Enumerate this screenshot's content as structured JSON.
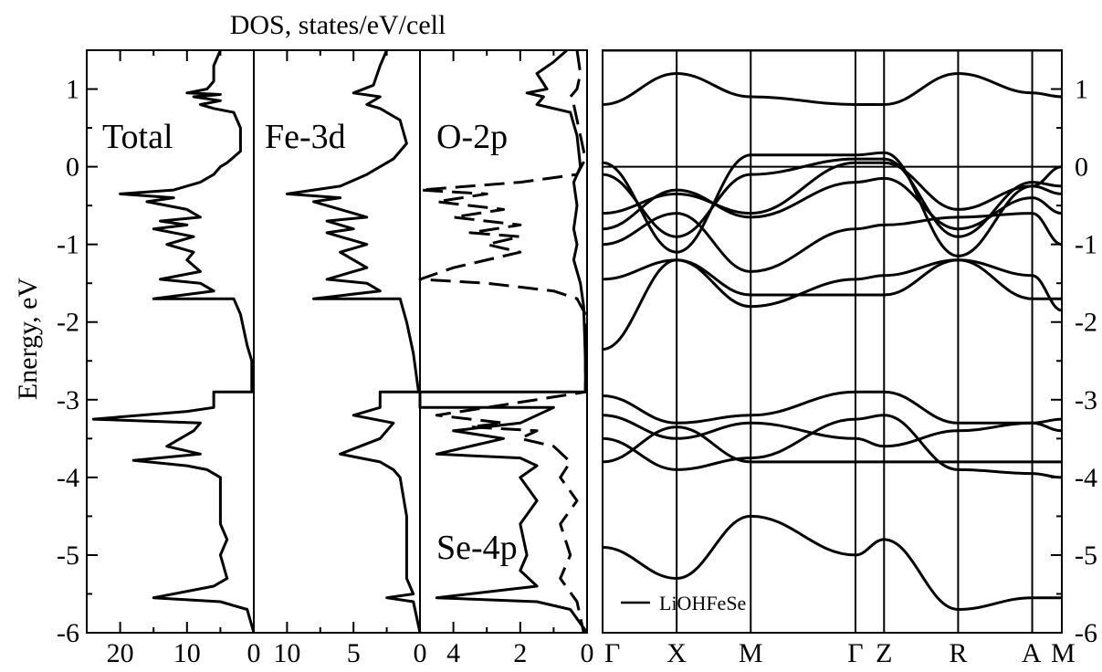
{
  "chart_data": {
    "type": "line",
    "title": "DOS, states/eV/cell",
    "ylabel": "Energy, eV",
    "ylim": [
      -6,
      1.5
    ],
    "y_ticks": [
      1,
      0,
      -1,
      -2,
      -3,
      -4,
      -5,
      -6
    ],
    "y_tick_labels": [
      "1",
      "0",
      "-1",
      "-2",
      "-3",
      "-4",
      "-5",
      "-6"
    ],
    "panels": [
      {
        "label": "Total",
        "xlim": [
          25,
          0
        ],
        "x_ticks": [
          20,
          10,
          0
        ],
        "x_tick_labels": [
          "20",
          "10",
          "0"
        ],
        "series": [
          {
            "style": "solid",
            "points": [
              [
                5,
                1.5
              ],
              [
                6,
                1.3
              ],
              [
                6,
                1.1
              ],
              [
                7,
                1.0
              ],
              [
                10,
                0.95
              ],
              [
                5,
                0.93
              ],
              [
                9,
                0.9
              ],
              [
                5,
                0.85
              ],
              [
                8,
                0.8
              ],
              [
                6,
                0.75
              ],
              [
                3,
                0.7
              ],
              [
                2,
                0.5
              ],
              [
                2,
                0.2
              ],
              [
                4,
                0.05
              ],
              [
                5,
                0
              ],
              [
                6,
                -0.1
              ],
              [
                8,
                -0.2
              ],
              [
                12,
                -0.3
              ],
              [
                20,
                -0.35
              ],
              [
                12,
                -0.4
              ],
              [
                16,
                -0.45
              ],
              [
                10,
                -0.55
              ],
              [
                8,
                -0.65
              ],
              [
                14,
                -0.7
              ],
              [
                10,
                -0.75
              ],
              [
                15,
                -0.8
              ],
              [
                9,
                -0.9
              ],
              [
                13,
                -1.0
              ],
              [
                9,
                -1.1
              ],
              [
                10,
                -1.2
              ],
              [
                8,
                -1.35
              ],
              [
                14,
                -1.45
              ],
              [
                8,
                -1.5
              ],
              [
                6,
                -1.6
              ],
              [
                15,
                -1.7
              ],
              [
                3,
                -1.7
              ],
              [
                2,
                -1.9
              ],
              [
                1,
                -2.3
              ],
              [
                0.3,
                -2.5
              ],
              [
                0.3,
                -2.9
              ],
              [
                6,
                -2.9
              ],
              [
                6,
                -3.1
              ],
              [
                10,
                -3.15
              ],
              [
                24,
                -3.25
              ],
              [
                8,
                -3.3
              ],
              [
                9,
                -3.4
              ],
              [
                13,
                -3.6
              ],
              [
                8,
                -3.7
              ],
              [
                18,
                -3.78
              ],
              [
                10,
                -3.85
              ],
              [
                7,
                -3.9
              ],
              [
                5,
                -4.0
              ],
              [
                5,
                -4.6
              ],
              [
                4,
                -4.8
              ],
              [
                5,
                -5.0
              ],
              [
                4,
                -5.3
              ],
              [
                6,
                -5.4
              ],
              [
                15,
                -5.55
              ],
              [
                5,
                -5.6
              ],
              [
                1,
                -5.7
              ],
              [
                0,
                -6.0
              ]
            ]
          }
        ]
      },
      {
        "label": "Fe-3d",
        "xlim": [
          12.5,
          0
        ],
        "x_ticks": [
          10,
          5,
          0
        ],
        "x_tick_labels": [
          "10",
          "5",
          "0"
        ],
        "series": [
          {
            "style": "solid",
            "points": [
              [
                2.5,
                1.5
              ],
              [
                3,
                1.3
              ],
              [
                3.5,
                1.05
              ],
              [
                5,
                0.95
              ],
              [
                3,
                0.9
              ],
              [
                4,
                0.8
              ],
              [
                3,
                0.75
              ],
              [
                1.5,
                0.6
              ],
              [
                1,
                0.3
              ],
              [
                2,
                0.1
              ],
              [
                3,
                0
              ],
              [
                4,
                -0.1
              ],
              [
                6,
                -0.25
              ],
              [
                10,
                -0.35
              ],
              [
                6,
                -0.4
              ],
              [
                8,
                -0.45
              ],
              [
                5,
                -0.6
              ],
              [
                4,
                -0.65
              ],
              [
                7,
                -0.7
              ],
              [
                5,
                -0.8
              ],
              [
                7,
                -0.85
              ],
              [
                4,
                -1.0
              ],
              [
                6,
                -1.1
              ],
              [
                4,
                -1.3
              ],
              [
                7,
                -1.45
              ],
              [
                4,
                -1.5
              ],
              [
                3,
                -1.6
              ],
              [
                8,
                -1.7
              ],
              [
                1.5,
                -1.7
              ],
              [
                1,
                -2.0
              ],
              [
                0.5,
                -2.4
              ],
              [
                0.1,
                -2.9
              ],
              [
                3,
                -2.9
              ],
              [
                3,
                -3.1
              ],
              [
                5,
                -3.2
              ],
              [
                2,
                -3.3
              ],
              [
                3,
                -3.5
              ],
              [
                6,
                -3.7
              ],
              [
                3,
                -3.8
              ],
              [
                2,
                -3.9
              ],
              [
                1.5,
                -4.0
              ],
              [
                1,
                -4.5
              ],
              [
                1,
                -5.3
              ],
              [
                0.5,
                -5.5
              ],
              [
                2.5,
                -5.55
              ],
              [
                0.5,
                -5.6
              ],
              [
                0,
                -6.0
              ]
            ]
          }
        ]
      },
      {
        "label": "O-2p",
        "xlim": [
          5,
          0
        ],
        "x_ticks": [
          4,
          2,
          0
        ],
        "x_tick_labels": [
          "4",
          "2",
          "0"
        ],
        "series": [
          {
            "style": "solid",
            "points": [
              [
                0.6,
                1.5
              ],
              [
                1,
                1.35
              ],
              [
                1.5,
                1.2
              ],
              [
                1.2,
                1.0
              ],
              [
                1.8,
                0.95
              ],
              [
                1.3,
                0.9
              ],
              [
                1.5,
                0.8
              ],
              [
                0.5,
                0.7
              ],
              [
                0.3,
                0.4
              ],
              [
                0.2,
                0
              ],
              [
                0.4,
                -0.2
              ],
              [
                0.3,
                -0.5
              ],
              [
                0.4,
                -0.8
              ],
              [
                0.3,
                -1.0
              ],
              [
                0.4,
                -1.2
              ],
              [
                0.2,
                -1.5
              ],
              [
                0.1,
                -1.8
              ],
              [
                0.05,
                -2.5
              ],
              [
                0.05,
                -2.9
              ],
              [
                5,
                -2.9
              ],
              [
                5,
                -3.1
              ],
              [
                1,
                -3.1
              ],
              [
                2,
                -3.3
              ],
              [
                4,
                -3.4
              ],
              [
                2.5,
                -3.5
              ],
              [
                4.5,
                -3.7
              ],
              [
                2,
                -3.75
              ],
              [
                1.5,
                -3.85
              ],
              [
                2,
                -4.0
              ],
              [
                1.5,
                -4.3
              ],
              [
                2,
                -4.6
              ],
              [
                1.8,
                -5.0
              ],
              [
                2,
                -5.2
              ],
              [
                1.5,
                -5.4
              ],
              [
                4.5,
                -5.55
              ],
              [
                1.5,
                -5.6
              ],
              [
                0.5,
                -5.7
              ],
              [
                0,
                -6.0
              ]
            ]
          },
          {
            "style": "dashed",
            "points": [
              [
                0.3,
                1.5
              ],
              [
                0.2,
                1.2
              ],
              [
                0.3,
                1.0
              ],
              [
                0.5,
                0.9
              ],
              [
                0.4,
                0.8
              ],
              [
                0.2,
                0.4
              ],
              [
                0.05,
                0.1
              ],
              [
                0.3,
                -0.1
              ],
              [
                2,
                -0.2
              ],
              [
                5,
                -0.3
              ],
              [
                3,
                -0.35
              ],
              [
                4.5,
                -0.45
              ],
              [
                2.5,
                -0.55
              ],
              [
                4,
                -0.65
              ],
              [
                2,
                -0.75
              ],
              [
                3.5,
                -0.85
              ],
              [
                2,
                -0.9
              ],
              [
                3,
                -1.0
              ],
              [
                2,
                -1.1
              ],
              [
                4,
                -1.3
              ],
              [
                5,
                -1.45
              ],
              [
                3,
                -1.5
              ],
              [
                1,
                -1.6
              ],
              [
                0.3,
                -1.7
              ],
              [
                0.05,
                -1.9
              ],
              [
                0.05,
                -2.9
              ],
              [
                3,
                -3.1
              ],
              [
                4.5,
                -3.2
              ],
              [
                2.5,
                -3.3
              ],
              [
                3.5,
                -3.35
              ],
              [
                1.5,
                -3.4
              ],
              [
                2,
                -3.5
              ],
              [
                1,
                -3.6
              ],
              [
                0.5,
                -3.8
              ],
              [
                0.8,
                -4.0
              ],
              [
                0.3,
                -4.3
              ],
              [
                0.8,
                -4.6
              ],
              [
                0.5,
                -5.0
              ],
              [
                0.8,
                -5.3
              ],
              [
                0.3,
                -5.6
              ],
              [
                0.1,
                -6.0
              ]
            ]
          }
        ]
      }
    ],
    "inset_labels": [
      {
        "panel": 0,
        "text": "Total"
      },
      {
        "panel": 1,
        "text": "Fe-3d"
      },
      {
        "panel": 2,
        "text": "O-2p"
      },
      {
        "panel": 2,
        "text": "Se-4p"
      }
    ],
    "bands": {
      "ylim": [
        -6,
        1.5
      ],
      "k_labels": [
        "Γ",
        "X",
        "M",
        "Γ",
        "Z",
        "R",
        "A",
        "M"
      ],
      "k_positions": [
        0,
        1,
        2,
        3.414,
        3.8,
        4.8,
        5.8,
        6.2
      ],
      "fermi_level": 0,
      "legend": "LiOHFeSe",
      "y_ticks": [
        1,
        0,
        -1,
        -2,
        -3,
        -4,
        -5,
        -6
      ],
      "y_tick_labels": [
        "1",
        "0",
        "-1",
        "-2",
        "-3",
        "-4",
        "-5",
        "-6"
      ],
      "energies": [
        [
          -2.35,
          -1.2,
          -1.65,
          -1.65,
          -1.65,
          -1.2,
          -1.4,
          -1.85
        ],
        [
          -1.45,
          -1.2,
          -1.8,
          -1.45,
          -1.4,
          -1.2,
          -1.7,
          -1.7
        ],
        [
          -1.0,
          -0.6,
          -1.35,
          -0.8,
          -0.75,
          -0.65,
          -0.6,
          -1.0
        ],
        [
          -0.8,
          -0.3,
          -0.65,
          -0.2,
          -0.15,
          -0.8,
          -0.4,
          -0.6
        ],
        [
          -0.6,
          -0.35,
          -0.6,
          0.05,
          0.05,
          -0.55,
          -0.25,
          -0.35
        ],
        [
          -0.1,
          -0.9,
          -0.1,
          0.1,
          0.1,
          -0.9,
          -0.2,
          -0.25
        ],
        [
          0.05,
          -1.1,
          0.15,
          0.15,
          0.18,
          -1.15,
          -0.25,
          0.0
        ],
        [
          0.8,
          1.2,
          0.9,
          0.8,
          0.8,
          1.2,
          0.95,
          0.9
        ],
        [
          1.5,
          1.5,
          1.5,
          1.5,
          1.5,
          1.5,
          1.5,
          1.5
        ],
        [
          -2.95,
          -3.3,
          -3.2,
          -2.9,
          -2.9,
          -3.3,
          -3.3,
          -3.25
        ],
        [
          -3.2,
          -3.5,
          -3.3,
          -3.5,
          -3.6,
          -3.4,
          -3.3,
          -3.4
        ],
        [
          -3.8,
          -3.35,
          -3.8,
          -3.8,
          -3.8,
          -3.8,
          -3.8,
          -3.8
        ],
        [
          -3.5,
          -3.9,
          -3.75,
          -3.25,
          -3.2,
          -3.9,
          -3.95,
          -4.0
        ],
        [
          -4.9,
          -5.3,
          -4.5,
          -5.0,
          -4.8,
          -5.7,
          -5.55,
          -5.55
        ]
      ]
    }
  }
}
